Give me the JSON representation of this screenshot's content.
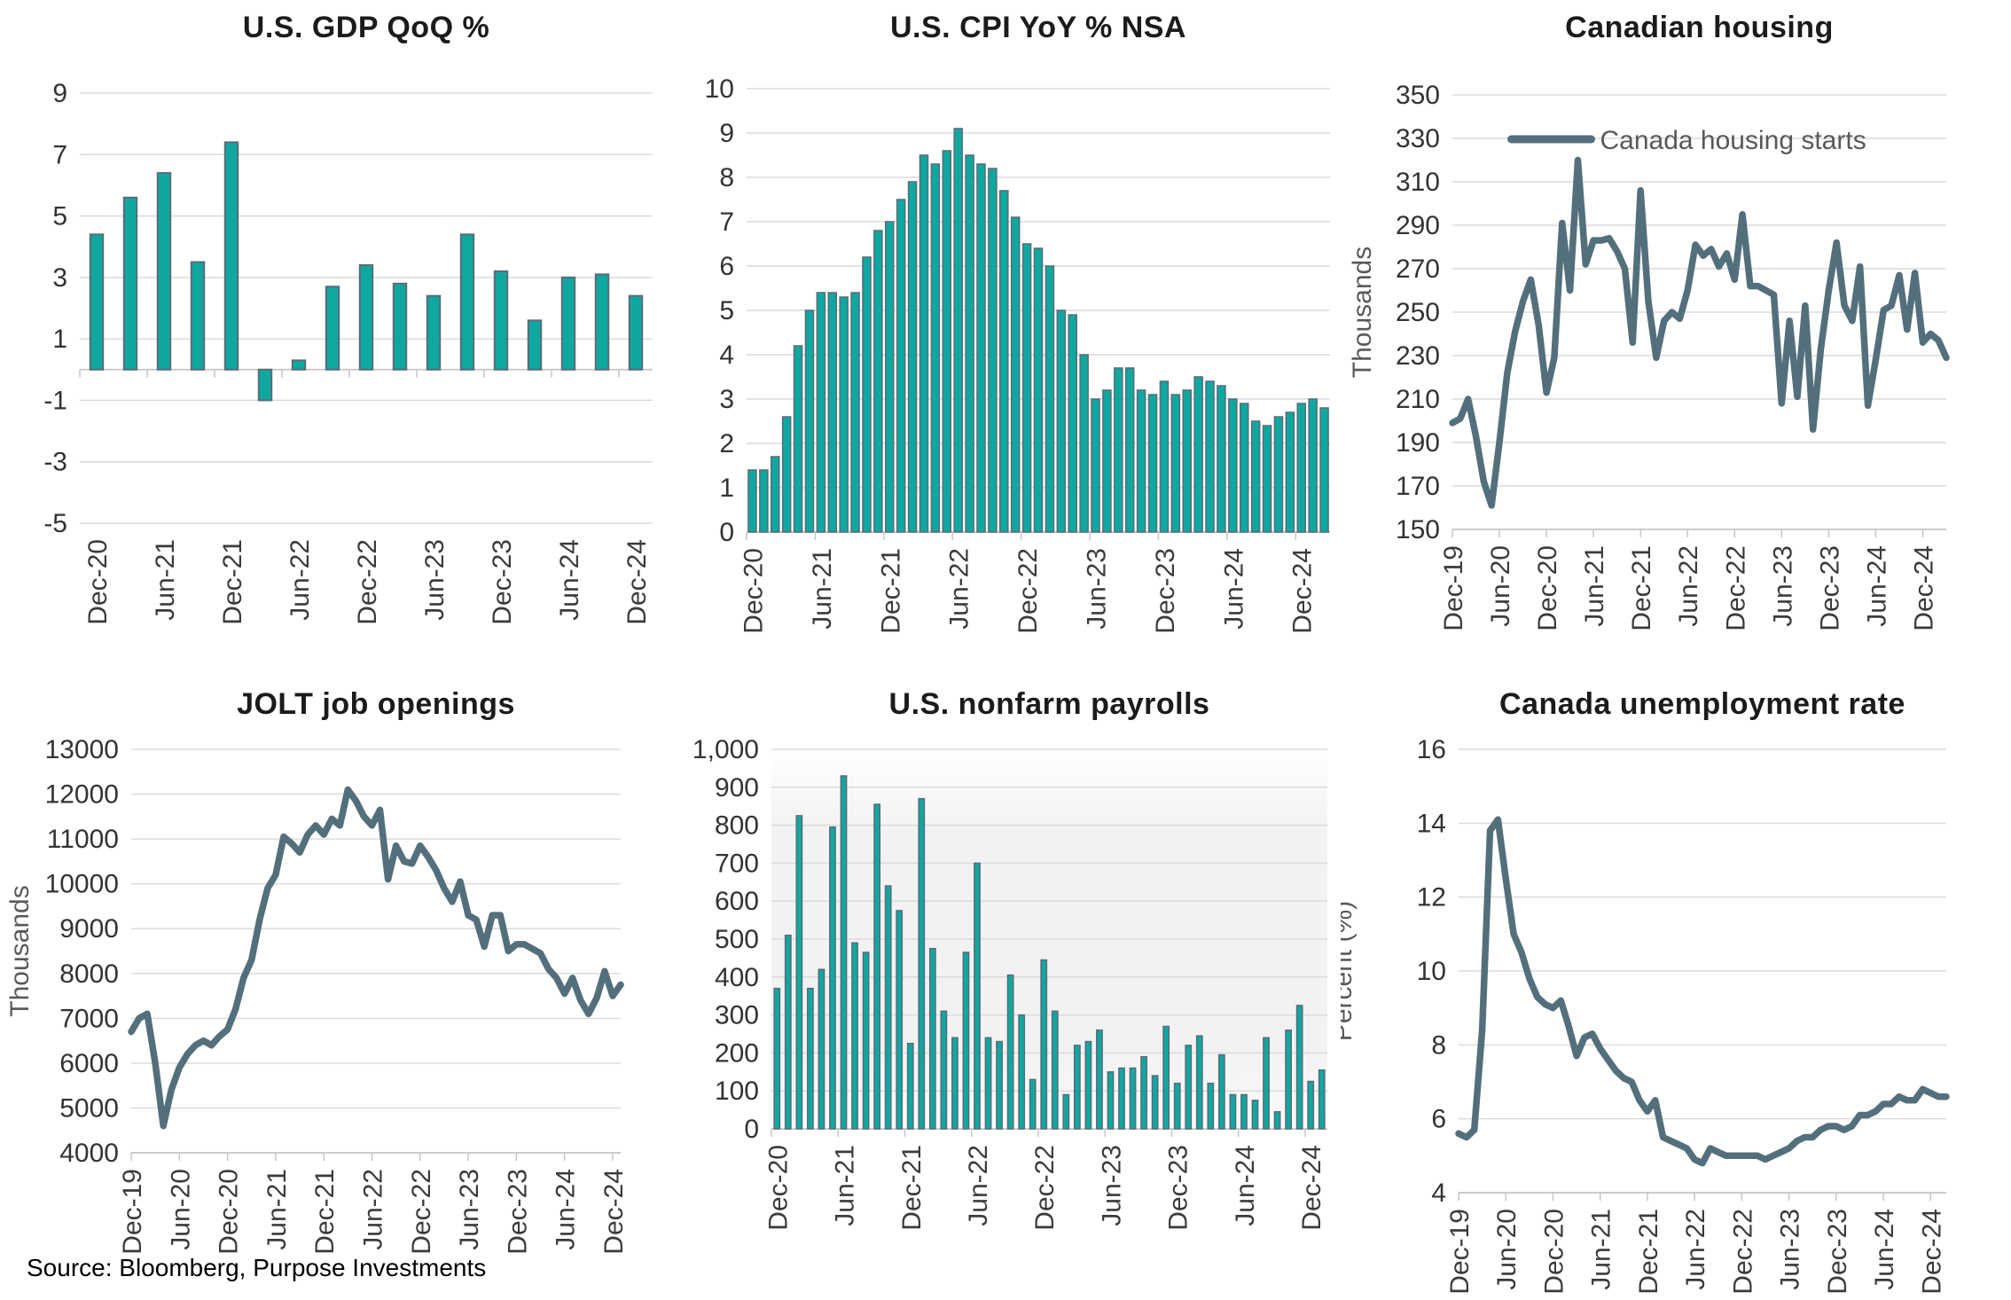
{
  "page": {
    "background": "#FFFFFF",
    "source_note": "Source: Bloomberg, Purpose Investments"
  },
  "colors": {
    "bar_fill": "#0FA8A1",
    "bar_stroke": "#5A6B77",
    "line": "#546F7C",
    "grid": "#DBDBDB",
    "axis": "#C6C6C6",
    "tick_text": "#333333",
    "title_text": "#1B1B1B",
    "legend_text": "#595959",
    "payroll_plot_bg": "#F2F2F2"
  },
  "chart_data": [
    {
      "id": "gdp",
      "type": "bar",
      "title": "U.S. GDP QoQ %",
      "ylabel": null,
      "ylim": [
        -5,
        9
      ],
      "ystep": 2,
      "y_comma": false,
      "interval": "quarterly",
      "grid": true,
      "legend": null,
      "x_tick_labels": [
        "Dec-20",
        "Jun-21",
        "Dec-21",
        "Jun-22",
        "Dec-22",
        "Jun-23",
        "Dec-23",
        "Jun-24",
        "Dec-24"
      ],
      "x_tick_indices": [
        0,
        2,
        4,
        6,
        8,
        10,
        12,
        14,
        16
      ],
      "values": [
        4.4,
        5.6,
        6.4,
        3.5,
        7.4,
        -1.0,
        0.3,
        2.7,
        3.4,
        2.8,
        2.4,
        4.4,
        3.2,
        1.6,
        3.0,
        3.1,
        2.4
      ]
    },
    {
      "id": "cpi",
      "type": "bar",
      "title": "U.S. CPI YoY % NSA",
      "ylabel": null,
      "ylim": [
        0,
        10
      ],
      "ystep": 1,
      "y_comma": false,
      "interval": "monthly",
      "grid": true,
      "legend": null,
      "x_tick_labels": [
        "Dec-20",
        "Jun-21",
        "Dec-21",
        "Jun-22",
        "Dec-22",
        "Jun-23",
        "Dec-23",
        "Jun-24",
        "Dec-24"
      ],
      "x_tick_indices": [
        0,
        6,
        12,
        18,
        24,
        30,
        36,
        42,
        48
      ],
      "values": [
        1.4,
        1.4,
        1.7,
        2.6,
        4.2,
        5.0,
        5.4,
        5.4,
        5.3,
        5.4,
        6.2,
        6.8,
        7.0,
        7.5,
        7.9,
        8.5,
        8.3,
        8.6,
        9.1,
        8.5,
        8.3,
        8.2,
        7.7,
        7.1,
        6.5,
        6.4,
        6.0,
        5.0,
        4.9,
        4.0,
        3.0,
        3.2,
        3.7,
        3.7,
        3.2,
        3.1,
        3.4,
        3.1,
        3.2,
        3.5,
        3.4,
        3.3,
        3.0,
        2.9,
        2.5,
        2.4,
        2.6,
        2.7,
        2.9,
        3.0,
        2.8
      ]
    },
    {
      "id": "housing",
      "type": "line",
      "title": "Canadian housing",
      "ylabel": "Thousands",
      "ylim": [
        150,
        350
      ],
      "ystep": 20,
      "y_comma": false,
      "interval": "monthly",
      "grid": true,
      "legend": {
        "label": "Canada housing starts",
        "position": "top-center"
      },
      "x_tick_labels": [
        "Dec-19",
        "Jun-20",
        "Dec-20",
        "Jun-21",
        "Dec-21",
        "Jun-22",
        "Dec-22",
        "Jun-23",
        "Dec-23",
        "Jun-24",
        "Dec-24"
      ],
      "x_tick_indices": [
        0,
        6,
        12,
        18,
        24,
        30,
        36,
        42,
        48,
        54,
        60
      ],
      "values": [
        199,
        201,
        210,
        193,
        172,
        161,
        190,
        222,
        241,
        255,
        265,
        244,
        213,
        229,
        291,
        260,
        320,
        272,
        283,
        283,
        284,
        278,
        270,
        236,
        306,
        255,
        229,
        246,
        250,
        247,
        260,
        281,
        276,
        279,
        271,
        277,
        265,
        295,
        262,
        262,
        260,
        258,
        208,
        246,
        211,
        253,
        196,
        233,
        260,
        282,
        253,
        246,
        271,
        207,
        228,
        251,
        253,
        267,
        242,
        268,
        236,
        240,
        237,
        229
      ]
    },
    {
      "id": "jolt",
      "type": "line",
      "title": "JOLT job openings",
      "ylabel": "Thousands",
      "ylim": [
        4000,
        13000
      ],
      "ystep": 1000,
      "y_comma": false,
      "interval": "monthly",
      "grid": true,
      "legend": null,
      "x_tick_labels": [
        "Dec-19",
        "Jun-20",
        "Dec-20",
        "Jun-21",
        "Dec-21",
        "Jun-22",
        "Dec-22",
        "Jun-23",
        "Dec-23",
        "Jun-24",
        "Dec-24"
      ],
      "x_tick_indices": [
        0,
        6,
        12,
        18,
        24,
        30,
        36,
        42,
        48,
        54,
        60
      ],
      "values": [
        6700,
        7000,
        7100,
        6000,
        4600,
        5400,
        5900,
        6200,
        6400,
        6500,
        6400,
        6600,
        6750,
        7200,
        7900,
        8300,
        9200,
        9900,
        10200,
        11050,
        10900,
        10700,
        11100,
        11300,
        11100,
        11450,
        11300,
        12100,
        11850,
        11500,
        11300,
        11650,
        10100,
        10850,
        10500,
        10450,
        10850,
        10600,
        10300,
        9900,
        9600,
        10050,
        9300,
        9200,
        8600,
        9300,
        9300,
        8500,
        8650,
        8650,
        8550,
        8450,
        8100,
        7900,
        7550,
        7900,
        7400,
        7100,
        7450,
        8050,
        7500,
        7750
      ]
    },
    {
      "id": "payrolls",
      "type": "bar",
      "title": "U.S. nonfarm payrolls",
      "ylabel": null,
      "ylim": [
        0,
        1000
      ],
      "ystep": 100,
      "y_comma": true,
      "interval": "monthly",
      "grid": true,
      "legend": null,
      "plot_background": true,
      "x_tick_labels": [
        "Dec-20",
        "Jun-21",
        "Dec-21",
        "Jun-22",
        "Dec-22",
        "Jun-23",
        "Dec-23",
        "Jun-24",
        "Dec-24"
      ],
      "x_tick_indices": [
        0,
        6,
        12,
        18,
        24,
        30,
        36,
        42,
        48
      ],
      "values": [
        370,
        510,
        825,
        370,
        420,
        795,
        930,
        490,
        465,
        855,
        640,
        575,
        225,
        870,
        475,
        310,
        240,
        465,
        700,
        240,
        230,
        405,
        300,
        130,
        445,
        310,
        90,
        220,
        230,
        260,
        150,
        160,
        160,
        190,
        140,
        270,
        120,
        220,
        245,
        120,
        195,
        90,
        90,
        75,
        240,
        45,
        260,
        325,
        125,
        155
      ]
    },
    {
      "id": "unemployment",
      "type": "line",
      "title": "Canada unemployment rate",
      "ylabel": "Percent (%)",
      "ylim": [
        4,
        16
      ],
      "ystep": 2,
      "y_comma": false,
      "interval": "monthly",
      "grid": true,
      "legend": null,
      "x_tick_labels": [
        "Dec-19",
        "Jun-20",
        "Dec-20",
        "Jun-21",
        "Dec-21",
        "Jun-22",
        "Dec-22",
        "Jun-23",
        "Dec-23",
        "Jun-24",
        "Dec-24"
      ],
      "x_tick_indices": [
        0,
        6,
        12,
        18,
        24,
        30,
        36,
        42,
        48,
        54,
        60
      ],
      "values": [
        5.6,
        5.5,
        5.7,
        8.4,
        13.8,
        14.1,
        12.5,
        11.0,
        10.5,
        9.8,
        9.3,
        9.1,
        9.0,
        9.2,
        8.5,
        7.7,
        8.2,
        8.3,
        7.9,
        7.6,
        7.3,
        7.1,
        7.0,
        6.5,
        6.2,
        6.5,
        5.5,
        5.4,
        5.3,
        5.2,
        4.9,
        4.8,
        5.2,
        5.1,
        5.0,
        5.0,
        5.0,
        5.0,
        5.0,
        4.9,
        5.0,
        5.1,
        5.2,
        5.4,
        5.5,
        5.5,
        5.7,
        5.8,
        5.8,
        5.7,
        5.8,
        6.1,
        6.1,
        6.2,
        6.4,
        6.4,
        6.6,
        6.5,
        6.5,
        6.8,
        6.7,
        6.6,
        6.6
      ]
    }
  ]
}
